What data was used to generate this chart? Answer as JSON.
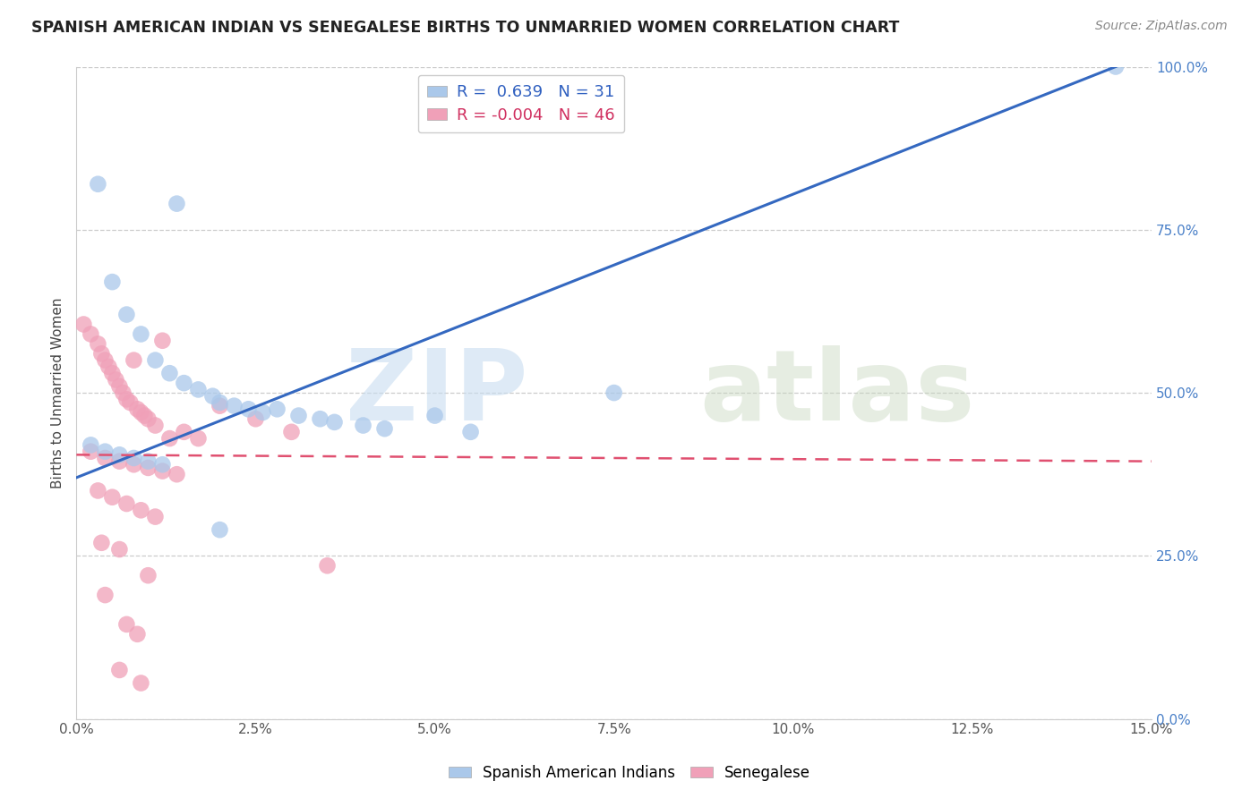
{
  "title": "SPANISH AMERICAN INDIAN VS SENEGALESE BIRTHS TO UNMARRIED WOMEN CORRELATION CHART",
  "source": "Source: ZipAtlas.com",
  "ylabel": "Births to Unmarried Women",
  "xlabel_ticks": [
    "0.0%",
    "2.5%",
    "5.0%",
    "7.5%",
    "10.0%",
    "12.5%",
    "15.0%"
  ],
  "xlabel_vals": [
    0.0,
    2.5,
    5.0,
    7.5,
    10.0,
    12.5,
    15.0
  ],
  "ylabel_ticks": [
    "0.0%",
    "25.0%",
    "50.0%",
    "75.0%",
    "100.0%"
  ],
  "ylabel_vals": [
    0.0,
    25.0,
    50.0,
    75.0,
    100.0
  ],
  "xlim": [
    0,
    15
  ],
  "ylim": [
    0,
    100
  ],
  "R_blue": 0.639,
  "N_blue": 31,
  "R_pink": -0.004,
  "N_pink": 46,
  "blue_color": "#aac8ea",
  "pink_color": "#f0a0b8",
  "blue_line_color": "#3468c0",
  "pink_line_color": "#e05070",
  "legend_label_blue": "Spanish American Indians",
  "legend_label_pink": "Senegalese",
  "blue_line_x0": 0.0,
  "blue_line_y0": 37.0,
  "blue_line_x1": 14.5,
  "blue_line_y1": 100.0,
  "pink_line_x0": 0.0,
  "pink_line_y0": 40.5,
  "pink_line_x1": 15.0,
  "pink_line_y1": 39.5,
  "blue_points": [
    [
      0.3,
      82.0
    ],
    [
      0.5,
      67.0
    ],
    [
      1.4,
      79.0
    ],
    [
      0.7,
      62.0
    ],
    [
      0.9,
      59.0
    ],
    [
      1.1,
      55.0
    ],
    [
      1.3,
      53.0
    ],
    [
      1.5,
      51.5
    ],
    [
      1.7,
      50.5
    ],
    [
      1.9,
      49.5
    ],
    [
      2.0,
      48.5
    ],
    [
      2.2,
      48.0
    ],
    [
      2.4,
      47.5
    ],
    [
      2.6,
      47.0
    ],
    [
      2.8,
      47.5
    ],
    [
      3.1,
      46.5
    ],
    [
      3.4,
      46.0
    ],
    [
      3.6,
      45.5
    ],
    [
      4.0,
      45.0
    ],
    [
      4.3,
      44.5
    ],
    [
      5.0,
      46.5
    ],
    [
      5.5,
      44.0
    ],
    [
      7.5,
      50.0
    ],
    [
      0.2,
      42.0
    ],
    [
      0.4,
      41.0
    ],
    [
      0.6,
      40.5
    ],
    [
      0.8,
      40.0
    ],
    [
      1.0,
      39.5
    ],
    [
      1.2,
      39.0
    ],
    [
      2.0,
      29.0
    ],
    [
      14.5,
      100.0
    ]
  ],
  "pink_points": [
    [
      0.1,
      60.5
    ],
    [
      0.2,
      59.0
    ],
    [
      0.3,
      57.5
    ],
    [
      0.35,
      56.0
    ],
    [
      0.4,
      55.0
    ],
    [
      0.45,
      54.0
    ],
    [
      0.5,
      53.0
    ],
    [
      0.55,
      52.0
    ],
    [
      0.6,
      51.0
    ],
    [
      0.65,
      50.0
    ],
    [
      0.7,
      49.0
    ],
    [
      0.75,
      48.5
    ],
    [
      0.8,
      55.0
    ],
    [
      0.85,
      47.5
    ],
    [
      0.9,
      47.0
    ],
    [
      0.95,
      46.5
    ],
    [
      1.0,
      46.0
    ],
    [
      1.1,
      45.0
    ],
    [
      1.2,
      58.0
    ],
    [
      1.3,
      43.0
    ],
    [
      1.5,
      44.0
    ],
    [
      1.7,
      43.0
    ],
    [
      2.0,
      48.0
    ],
    [
      2.5,
      46.0
    ],
    [
      3.0,
      44.0
    ],
    [
      0.2,
      41.0
    ],
    [
      0.4,
      40.0
    ],
    [
      0.6,
      39.5
    ],
    [
      0.8,
      39.0
    ],
    [
      1.0,
      38.5
    ],
    [
      1.2,
      38.0
    ],
    [
      1.4,
      37.5
    ],
    [
      0.3,
      35.0
    ],
    [
      0.5,
      34.0
    ],
    [
      0.7,
      33.0
    ],
    [
      0.9,
      32.0
    ],
    [
      1.1,
      31.0
    ],
    [
      0.35,
      27.0
    ],
    [
      0.6,
      26.0
    ],
    [
      1.0,
      22.0
    ],
    [
      3.5,
      23.5
    ],
    [
      0.4,
      19.0
    ],
    [
      0.7,
      14.5
    ],
    [
      0.85,
      13.0
    ],
    [
      0.6,
      7.5
    ],
    [
      0.9,
      5.5
    ]
  ]
}
